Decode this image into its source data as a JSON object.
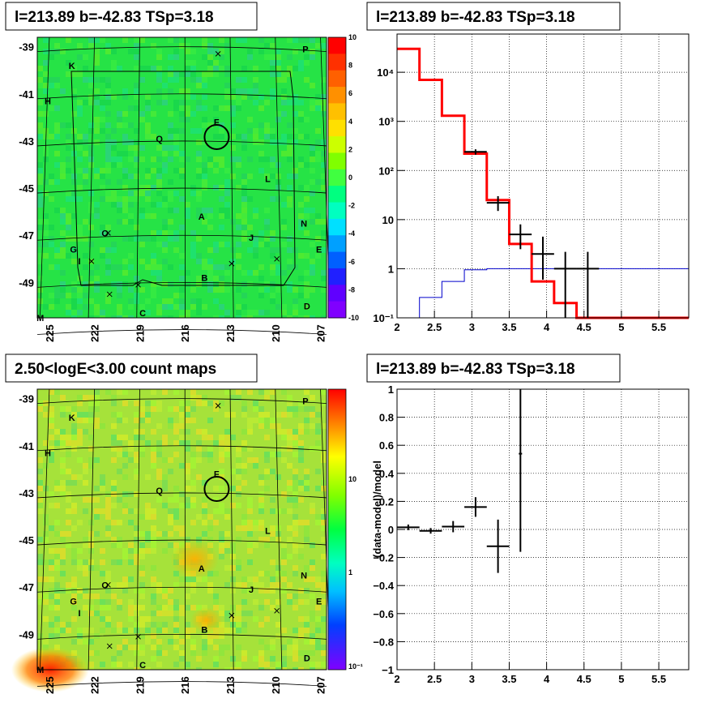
{
  "panels": {
    "tl_title": "l=213.89 b=-42.83 TSp=3.18",
    "tr_title": "l=213.89 b=-42.83 TSp=3.18",
    "bl_title": "2.50<logE<3.00 count maps",
    "br_title": "l=213.89 b=-42.83 TSp=3.18"
  },
  "chart_data": [
    {
      "type": "heatmap",
      "title": "l=213.89 b=-42.83 TSp=3.18",
      "x_ticks": [
        "225",
        "222",
        "219",
        "216",
        "213",
        "210",
        "207"
      ],
      "y_ticks": [
        "-39",
        "-41",
        "-43",
        "-45",
        "-47",
        "-49"
      ],
      "xlim": [
        225.8,
        206.6
      ],
      "ylim": [
        -50.5,
        -38.6
      ],
      "colorbar": {
        "min": -10,
        "max": 10,
        "ticks": [
          "10",
          "8",
          "6",
          "4",
          "2",
          "0",
          "-2",
          "-4",
          "-6",
          "-8",
          "-10"
        ]
      },
      "sources": [
        {
          "label": "A",
          "l": 214.9,
          "b": -46.2
        },
        {
          "label": "B",
          "l": 214.7,
          "b": -48.8
        },
        {
          "label": "C",
          "l": 218.8,
          "b": -50.3
        },
        {
          "label": "D",
          "l": 207.9,
          "b": -50.0
        },
        {
          "label": "E",
          "l": 207.1,
          "b": -47.6
        },
        {
          "label": "F",
          "l": 213.9,
          "b": -42.2
        },
        {
          "label": "G",
          "l": 223.4,
          "b": -47.6
        },
        {
          "label": "H",
          "l": 225.1,
          "b": -41.3
        },
        {
          "label": "I",
          "l": 223.0,
          "b": -48.1
        },
        {
          "label": "J",
          "l": 211.6,
          "b": -47.1
        },
        {
          "label": "K",
          "l": 223.5,
          "b": -39.8
        },
        {
          "label": "L",
          "l": 210.5,
          "b": -44.6
        },
        {
          "label": "M",
          "l": 225.6,
          "b": -50.5
        },
        {
          "label": "N",
          "l": 208.1,
          "b": -46.5
        },
        {
          "label": "O",
          "l": 221.3,
          "b": -46.9
        },
        {
          "label": "P",
          "l": 208.0,
          "b": -39.1
        },
        {
          "label": "Q",
          "l": 217.7,
          "b": -42.9
        }
      ],
      "crosses": [
        [
          213.8,
          -39.3
        ],
        [
          221.1,
          -46.9
        ],
        [
          222.2,
          -48.1
        ],
        [
          212.9,
          -48.2
        ],
        [
          221.0,
          -49.5
        ],
        [
          219.1,
          -49.1
        ],
        [
          209.9,
          -48.0
        ]
      ],
      "circle": {
        "l": 213.89,
        "b": -42.83
      }
    },
    {
      "type": "line",
      "title": "l=213.89 b=-42.83 TSp=3.18",
      "xlim": [
        2,
        5.9
      ],
      "ylim": [
        0.1,
        60000
      ],
      "yscale": "log",
      "x_ticks": [
        "2",
        "2.5",
        "3",
        "3.5",
        "4",
        "4.5",
        "5",
        "5.5"
      ],
      "y_ticks": [
        "10⁻¹",
        "1",
        "10",
        "10²",
        "10³",
        "10⁴"
      ],
      "grid": true,
      "series": [
        {
          "edges": [
            2.0,
            2.3,
            2.6,
            2.9,
            3.2,
            3.5,
            3.8,
            4.1,
            4.4,
            4.7,
            5.0,
            5.3,
            5.6,
            5.9
          ],
          "values": [
            30000,
            7000,
            1300,
            220,
            25,
            3.2,
            0.55,
            0.2,
            0.1,
            0.1,
            0.1,
            0.1,
            0.1
          ],
          "color": "#ff0000"
        },
        {
          "edges": [
            2.0,
            2.3,
            2.6,
            2.9,
            3.2,
            3.5,
            3.8,
            4.1,
            4.4,
            4.7,
            5.0,
            5.3,
            5.6,
            5.9
          ],
          "values": [
            0.02,
            0.26,
            0.55,
            0.95,
            1.0,
            1.0,
            1.0,
            1.0,
            1.0,
            1.0,
            1.0,
            1.0,
            1.0
          ],
          "color": "#0000cc"
        }
      ],
      "data_points": [
        {
          "x": 3.05,
          "xerr": 0.15,
          "y": 240,
          "ylo": 210,
          "yhi": 270
        },
        {
          "x": 3.35,
          "xerr": 0.15,
          "y": 22,
          "ylo": 15,
          "yhi": 30
        },
        {
          "x": 3.65,
          "xerr": 0.15,
          "y": 5,
          "ylo": 2.5,
          "yhi": 8
        },
        {
          "x": 3.95,
          "xerr": 0.15,
          "y": 2,
          "ylo": 0.6,
          "yhi": 4.5
        },
        {
          "x": 4.25,
          "xerr": 0.15,
          "y": 1,
          "ylo": 0.1,
          "yhi": 2.2
        },
        {
          "x": 4.55,
          "xerr": 0.15,
          "y": 1,
          "ylo": 0.1,
          "yhi": 2.2
        }
      ]
    },
    {
      "type": "heatmap",
      "title": "2.50<logE<3.00 count maps",
      "x_ticks": [
        "225",
        "222",
        "219",
        "216",
        "213",
        "210",
        "207"
      ],
      "y_ticks": [
        "-39",
        "-41",
        "-43",
        "-45",
        "-47",
        "-49"
      ],
      "xlim": [
        225.8,
        206.6
      ],
      "ylim": [
        -50.5,
        -38.6
      ],
      "colorbar": {
        "scale": "log",
        "ticks": [
          "10",
          "1",
          "10⁻¹"
        ]
      },
      "sources": [
        {
          "label": "A",
          "l": 214.9,
          "b": -46.2
        },
        {
          "label": "B",
          "l": 214.7,
          "b": -48.8
        },
        {
          "label": "C",
          "l": 218.8,
          "b": -50.3
        },
        {
          "label": "D",
          "l": 207.9,
          "b": -50.0
        },
        {
          "label": "E",
          "l": 207.1,
          "b": -47.6
        },
        {
          "label": "F",
          "l": 213.9,
          "b": -42.2
        },
        {
          "label": "G",
          "l": 223.4,
          "b": -47.6
        },
        {
          "label": "H",
          "l": 225.1,
          "b": -41.3
        },
        {
          "label": "I",
          "l": 223.0,
          "b": -48.1
        },
        {
          "label": "J",
          "l": 211.6,
          "b": -47.1
        },
        {
          "label": "K",
          "l": 223.5,
          "b": -39.8
        },
        {
          "label": "L",
          "l": 210.5,
          "b": -44.6
        },
        {
          "label": "M",
          "l": 225.6,
          "b": -50.5
        },
        {
          "label": "N",
          "l": 208.1,
          "b": -46.5
        },
        {
          "label": "O",
          "l": 221.3,
          "b": -46.9
        },
        {
          "label": "P",
          "l": 208.0,
          "b": -39.1
        },
        {
          "label": "Q",
          "l": 217.7,
          "b": -42.9
        }
      ],
      "crosses": [
        [
          213.8,
          -39.3
        ],
        [
          221.1,
          -46.9
        ],
        [
          212.9,
          -48.2
        ],
        [
          221.0,
          -49.5
        ],
        [
          219.1,
          -49.1
        ],
        [
          209.9,
          -48.0
        ]
      ],
      "circle": {
        "l": 213.89,
        "b": -42.83
      }
    },
    {
      "type": "scatter",
      "title": "l=213.89 b=-42.83 TSp=3.18",
      "ylabel": "(data-model)/model",
      "xlim": [
        2,
        5.9
      ],
      "ylim": [
        -1,
        1
      ],
      "x_ticks": [
        "2",
        "2.5",
        "3",
        "3.5",
        "4",
        "4.5",
        "5",
        "5.5"
      ],
      "y_ticks": [
        "1",
        "0.8",
        "0.6",
        "0.4",
        "0.2",
        "0",
        "−0.2",
        "−0.4",
        "−0.6",
        "−0.8",
        "−1"
      ],
      "grid": true,
      "points": [
        {
          "x": 2.15,
          "xerr": 0.15,
          "y": 0.015,
          "ylo": -0.005,
          "yhi": 0.035
        },
        {
          "x": 2.45,
          "xerr": 0.15,
          "y": -0.01,
          "ylo": -0.03,
          "yhi": 0.01
        },
        {
          "x": 2.75,
          "xerr": 0.15,
          "y": 0.02,
          "ylo": -0.02,
          "yhi": 0.06
        },
        {
          "x": 3.05,
          "xerr": 0.15,
          "y": 0.16,
          "ylo": 0.09,
          "yhi": 0.23
        },
        {
          "x": 3.35,
          "xerr": 0.15,
          "y": -0.12,
          "ylo": -0.31,
          "yhi": 0.07
        },
        {
          "x": 3.65,
          "xerr": 0.0,
          "y": 0.54,
          "ylo": -0.16,
          "yhi": 1.0
        }
      ]
    }
  ]
}
